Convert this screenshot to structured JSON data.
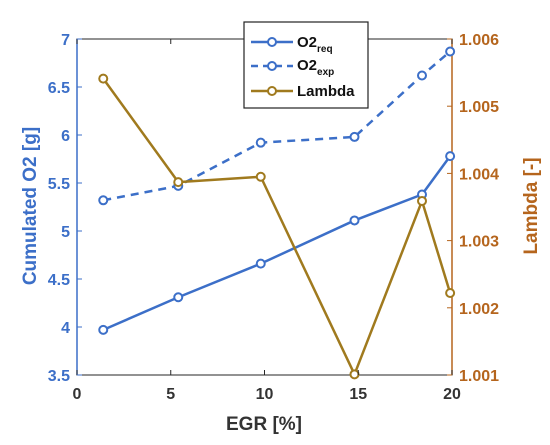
{
  "chart_data": {
    "type": "line",
    "xlabel": "EGR [%]",
    "ylabel_left": "Cumulated O2 [g]",
    "ylabel_right": "Lambda [-]",
    "xlim": [
      0,
      20
    ],
    "ylim_left": [
      3.5,
      7
    ],
    "ylim_right": [
      1.001,
      1.006
    ],
    "x_ticks": [
      "0",
      "5",
      "10",
      "15",
      "20"
    ],
    "y_left_ticks": [
      "3.5",
      "4",
      "4.5",
      "5",
      "5.5",
      "6",
      "6.5",
      "7"
    ],
    "y_right_ticks": [
      "1.001",
      "1.002",
      "1.003",
      "1.004",
      "1.005",
      "1.006"
    ],
    "legend_position": "top-center",
    "grid": false,
    "series": [
      {
        "name": "O2",
        "subscript": "req",
        "axis": "left",
        "color": "#3c6fc8",
        "linestyle": "solid",
        "x": [
          1.4,
          5.4,
          9.8,
          14.8,
          18.4,
          19.9
        ],
        "values": [
          3.97,
          4.31,
          4.66,
          5.11,
          5.38,
          5.78
        ]
      },
      {
        "name": "O2",
        "subscript": "exp",
        "axis": "left",
        "color": "#3c6fc8",
        "linestyle": "dashed",
        "x": [
          1.4,
          5.4,
          9.8,
          14.8,
          18.4,
          19.9
        ],
        "values": [
          5.32,
          5.47,
          5.92,
          5.98,
          6.62,
          6.87
        ]
      },
      {
        "name": "Lambda",
        "axis": "right",
        "color": "#a07a1e",
        "linestyle": "solid",
        "x": [
          1.4,
          5.4,
          9.8,
          14.8,
          18.4,
          19.9
        ],
        "values": [
          1.00541,
          1.00387,
          1.00395,
          1.00101,
          1.00359,
          1.00222
        ]
      }
    ]
  }
}
